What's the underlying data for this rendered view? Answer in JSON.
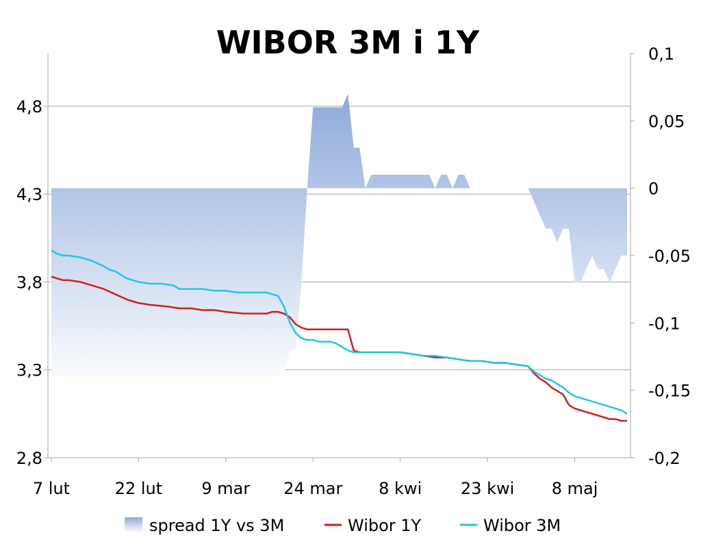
{
  "chart_data": {
    "type": "line",
    "title": "WIBOR 3M i 1Y",
    "x_tick_labels": [
      "7 lut",
      "22 lut",
      "9 mar",
      "24 mar",
      "8 kwi",
      "23 kwi",
      "8 maj"
    ],
    "y_left": {
      "lim": [
        2.8,
        5.1
      ],
      "tick_labels": [
        "2,8",
        "3,3",
        "3,8",
        "4,3",
        "4,8"
      ],
      "ticks": [
        2.8,
        3.3,
        3.8,
        4.3,
        4.8
      ]
    },
    "y_right": {
      "lim": [
        -0.2,
        0.1
      ],
      "tick_labels": [
        "-0,2",
        "-0,15",
        "-0,1",
        "-0,05",
        "0",
        "0,05",
        "0,1"
      ],
      "ticks": [
        -0.2,
        -0.15,
        -0.1,
        -0.05,
        0,
        0.05,
        0.1
      ]
    },
    "grid": true,
    "legend_position": "bottom",
    "series": [
      {
        "name": "spread 1Y vs 3M",
        "kind": "area",
        "axis": "right",
        "colors": {
          "top": "#8eaadb",
          "bottom": "#ffffff"
        },
        "x": [
          0,
          1,
          5,
          6,
          7,
          8,
          9,
          10,
          11,
          12,
          13,
          14,
          15,
          16,
          17,
          18,
          19,
          20,
          21,
          22,
          23,
          24,
          25,
          26,
          27,
          28,
          29,
          30,
          31,
          32,
          33,
          34,
          35,
          36,
          37,
          38,
          39,
          40,
          41,
          42,
          43,
          44,
          45,
          46,
          47,
          48,
          49,
          50,
          51,
          52,
          53,
          54,
          55,
          56,
          57,
          58,
          59,
          60,
          61,
          62,
          63,
          64,
          65,
          66,
          67,
          68,
          69,
          70,
          71,
          72,
          73,
          74,
          75,
          76,
          77,
          78,
          79,
          80,
          81,
          82,
          83,
          84,
          85,
          86,
          87,
          88,
          89,
          90,
          91,
          92,
          93,
          94,
          95,
          96,
          97,
          98,
          99
        ],
        "values": [
          -0.15,
          -0.14,
          -0.14,
          -0.14,
          -0.14,
          -0.14,
          -0.14,
          -0.14,
          -0.14,
          -0.14,
          -0.14,
          -0.14,
          -0.14,
          -0.14,
          -0.14,
          -0.14,
          -0.14,
          -0.14,
          -0.14,
          -0.14,
          -0.14,
          -0.14,
          -0.14,
          -0.14,
          -0.14,
          -0.14,
          -0.14,
          -0.14,
          -0.14,
          -0.14,
          -0.14,
          -0.14,
          -0.14,
          -0.14,
          -0.14,
          -0.14,
          -0.14,
          -0.14,
          -0.12,
          -0.12,
          -0.07,
          0,
          0.06,
          0.06,
          0.06,
          0.06,
          0.06,
          0.06,
          0.07,
          0.03,
          0.03,
          0,
          0.01,
          0.01,
          0.01,
          0.01,
          0.01,
          0.01,
          0.01,
          0.01,
          0.01,
          0.01,
          0.01,
          0,
          0.01,
          0.01,
          0,
          0.01,
          0.01,
          0,
          0,
          0,
          0,
          0,
          0,
          0,
          0,
          0,
          0,
          0,
          -0.01,
          -0.02,
          -0.03,
          -0.03,
          -0.04,
          -0.03,
          -0.03,
          -0.07,
          -0.07,
          -0.06,
          -0.05,
          -0.06,
          -0.06,
          -0.07,
          -0.06,
          -0.05,
          -0.05
        ]
      },
      {
        "name": "Wibor 1Y",
        "kind": "line",
        "axis": "left",
        "color": "#cc1f1f",
        "x": [
          0,
          1,
          2,
          3,
          5,
          7,
          9,
          11,
          13,
          15,
          17,
          20,
          22,
          24,
          26,
          28,
          30,
          33,
          36,
          37,
          38,
          39,
          40,
          41,
          42,
          43,
          44,
          45,
          46,
          47,
          48,
          49,
          50,
          51,
          52,
          53,
          54,
          56,
          58,
          60,
          62,
          64,
          66,
          68,
          70,
          72,
          74,
          76,
          78,
          80,
          82,
          83,
          84,
          85,
          86,
          87,
          88,
          89,
          90,
          91,
          92,
          93,
          94,
          95,
          96,
          97,
          98,
          99
        ],
        "values": [
          3.83,
          3.82,
          3.81,
          3.81,
          3.8,
          3.78,
          3.76,
          3.73,
          3.7,
          3.68,
          3.67,
          3.66,
          3.65,
          3.65,
          3.64,
          3.64,
          3.63,
          3.62,
          3.62,
          3.62,
          3.63,
          3.63,
          3.62,
          3.6,
          3.56,
          3.54,
          3.53,
          3.53,
          3.53,
          3.53,
          3.53,
          3.53,
          3.53,
          3.53,
          3.41,
          3.4,
          3.4,
          3.4,
          3.4,
          3.4,
          3.39,
          3.38,
          3.37,
          3.37,
          3.36,
          3.35,
          3.35,
          3.34,
          3.34,
          3.33,
          3.32,
          3.28,
          3.25,
          3.23,
          3.2,
          3.18,
          3.16,
          3.1,
          3.08,
          3.07,
          3.06,
          3.05,
          3.04,
          3.03,
          3.02,
          3.02,
          3.01,
          3.01
        ]
      },
      {
        "name": "Wibor 3M",
        "kind": "line",
        "axis": "left",
        "color": "#22c4ea",
        "x": [
          0,
          1,
          2,
          3,
          5,
          7,
          9,
          10,
          11,
          12,
          13,
          14,
          15,
          17,
          19,
          21,
          22,
          23,
          24,
          26,
          28,
          30,
          32,
          34,
          36,
          37,
          38,
          39,
          40,
          41,
          42,
          43,
          44,
          45,
          46,
          47,
          48,
          49,
          50,
          51,
          52,
          53,
          54,
          56,
          58,
          60,
          62,
          64,
          66,
          68,
          70,
          72,
          74,
          76,
          78,
          80,
          82,
          83,
          84,
          85,
          86,
          87,
          88,
          89,
          90,
          91,
          92,
          93,
          94,
          95,
          96,
          97,
          98,
          99
        ],
        "values": [
          3.98,
          3.96,
          3.95,
          3.95,
          3.94,
          3.92,
          3.89,
          3.87,
          3.86,
          3.84,
          3.82,
          3.81,
          3.8,
          3.79,
          3.79,
          3.78,
          3.76,
          3.76,
          3.76,
          3.76,
          3.75,
          3.75,
          3.74,
          3.74,
          3.74,
          3.74,
          3.73,
          3.72,
          3.66,
          3.57,
          3.51,
          3.48,
          3.47,
          3.47,
          3.46,
          3.46,
          3.46,
          3.45,
          3.43,
          3.41,
          3.4,
          3.4,
          3.4,
          3.4,
          3.4,
          3.4,
          3.39,
          3.38,
          3.38,
          3.37,
          3.36,
          3.35,
          3.35,
          3.34,
          3.34,
          3.33,
          3.32,
          3.29,
          3.27,
          3.25,
          3.24,
          3.22,
          3.2,
          3.17,
          3.15,
          3.14,
          3.13,
          3.12,
          3.11,
          3.1,
          3.09,
          3.08,
          3.07,
          3.05
        ]
      }
    ]
  }
}
